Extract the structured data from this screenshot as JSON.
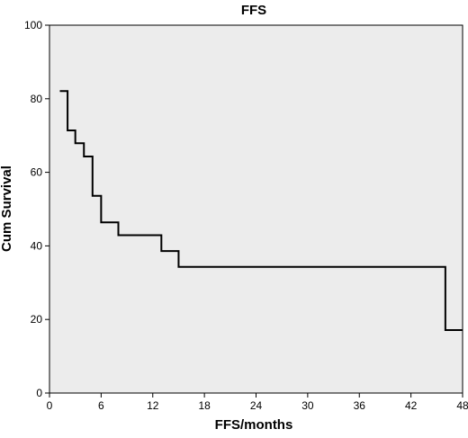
{
  "chart_data": {
    "type": "line",
    "subtype": "step",
    "title": "FFS",
    "xlabel": "FFS/months",
    "ylabel": "Cum Survival",
    "xlim": [
      0,
      48
    ],
    "ylim": [
      0,
      100
    ],
    "xticks": [
      0,
      6,
      12,
      18,
      24,
      30,
      36,
      42,
      48
    ],
    "yticks": [
      0,
      20,
      40,
      60,
      80,
      100
    ],
    "grid": false,
    "plot_background": "#ececec",
    "line_color": "#000000",
    "series": [
      {
        "x": [
          1.2,
          2.1,
          3.0,
          4.0,
          5.0,
          6.0,
          8.0,
          13.0,
          15.0,
          46.0,
          48.0
        ],
        "y": [
          82.1,
          71.4,
          67.9,
          64.3,
          53.6,
          46.4,
          42.9,
          38.6,
          34.3,
          17.1,
          17.1
        ]
      }
    ]
  }
}
